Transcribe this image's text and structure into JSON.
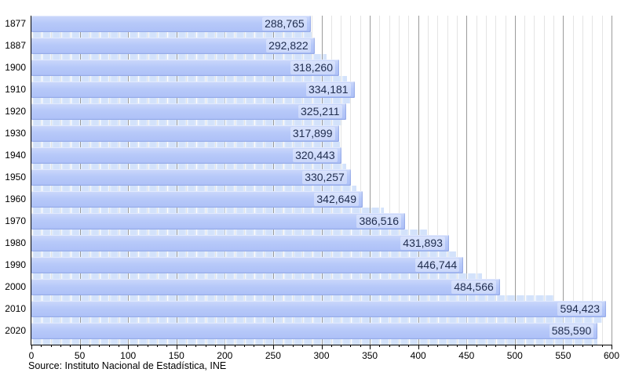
{
  "chart_data": {
    "type": "bar",
    "orientation": "horizontal",
    "title": "",
    "categories": [
      "1877",
      "1887",
      "1900",
      "1910",
      "1920",
      "1930",
      "1940",
      "1950",
      "1960",
      "1970",
      "1980",
      "1990",
      "2000",
      "2010",
      "2020"
    ],
    "values": [
      288765,
      292822,
      318260,
      334181,
      325211,
      317899,
      320443,
      330257,
      342649,
      386516,
      431893,
      446744,
      484566,
      594423,
      585590
    ],
    "value_labels": [
      "288,765",
      "292,822",
      "318,260",
      "334,181",
      "325,211",
      "317,899",
      "320,443",
      "330,257",
      "342,649",
      "386,516",
      "431,893",
      "446,744",
      "484,566",
      "594,423",
      "585,590"
    ],
    "xlabel": "",
    "ylabel": "",
    "xlim": [
      0,
      600
    ],
    "x_ticks": [
      0,
      50,
      100,
      150,
      200,
      250,
      300,
      350,
      400,
      450,
      500,
      550,
      600
    ],
    "x_minor_tick_step": 10,
    "x_value_scale": 1000,
    "grid": true,
    "legend": "none",
    "source": "Source: Instituto Nacional de Estadística, INE",
    "colors": {
      "bar_fill": "#b7c9f9",
      "bar_fill_light": "#cbd8fb",
      "reflection_band": "#d3e2fb",
      "value_text": "#1f2c4d",
      "grid_minor": "#e4e4e4",
      "grid_major": "#9b9b9b",
      "axis": "#000000"
    }
  }
}
